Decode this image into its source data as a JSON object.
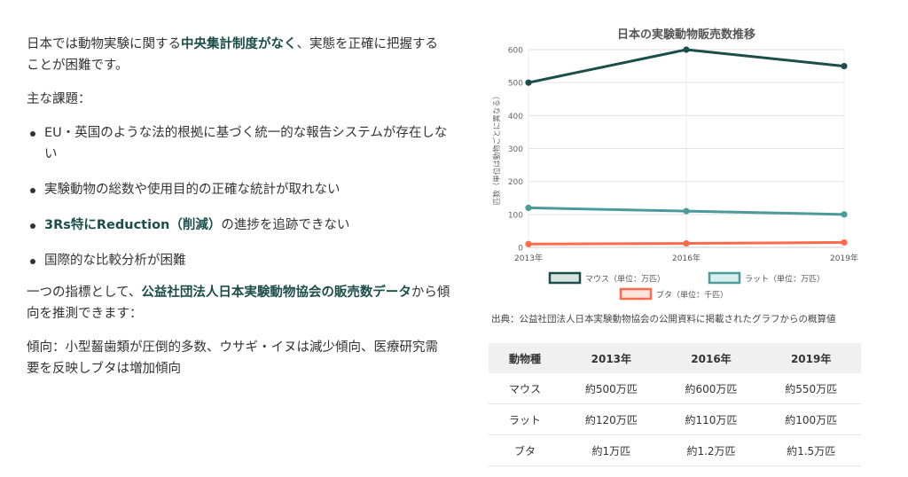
{
  "left": {
    "para1": {
      "pre": "日本では動物実験に関する",
      "highlight": "中央集計制度がなく",
      "post": "、実態を正確に把握することが困難です。"
    },
    "issues_heading": "主な課題：",
    "issues": [
      {
        "pre": "EU・英国のような法的根拠に基づく統一的な報告システムが存在しない",
        "highlight": "",
        "post": ""
      },
      {
        "pre": "実験動物の総数や使用目的の正確な統計が取れない",
        "highlight": "",
        "post": ""
      },
      {
        "pre": "",
        "highlight": "3Rs特にReduction（削減）",
        "post": "の進捗を追跡できない"
      },
      {
        "pre": "国際的な比較分析が困難",
        "highlight": "",
        "post": ""
      }
    ],
    "para3": {
      "pre": "一つの指標として、",
      "highlight": "公益社団法人日本実験動物協会の販売数データ",
      "post": "から傾向を推測できます："
    },
    "para4": "傾向：小型齧歯類が圧倒的多数、ウサギ・イヌは減少傾向、医療研究需要を反映しブタは増加傾向"
  },
  "chart_data": {
    "type": "line",
    "title": "日本の実験動物販売数推移",
    "ylabel": "匹数（単位は動物ごとに異なる）",
    "xlabel": "",
    "categories": [
      "2013年",
      "2016年",
      "2019年"
    ],
    "ylim": [
      0,
      600
    ],
    "yticks": [
      0,
      100,
      200,
      300,
      400,
      500,
      600
    ],
    "grid": true,
    "legend_position": "bottom",
    "series": [
      {
        "name": "マウス（単位：万匹）",
        "values": [
          500,
          600,
          550
        ],
        "color": "#1b4d4a",
        "fill": "#d9e3e2"
      },
      {
        "name": "ラット（単位：万匹）",
        "values": [
          120,
          110,
          100
        ],
        "color": "#4c9a9a",
        "fill": "#d7eeee"
      },
      {
        "name": "ブタ（単位：千匹）",
        "values": [
          10,
          12,
          15
        ],
        "color": "#ff6b4a",
        "fill": "#fde3dc"
      }
    ]
  },
  "source_note": "出典：公益社団法人日本実験動物協会の公開資料に掲載されたグラフからの概算値",
  "table": {
    "headers": [
      "動物種",
      "2013年",
      "2016年",
      "2019年"
    ],
    "rows": [
      [
        "マウス",
        "約500万匹",
        "約600万匹",
        "約550万匹"
      ],
      [
        "ラット",
        "約120万匹",
        "約110万匹",
        "約100万匹"
      ],
      [
        "ブタ",
        "約1万匹",
        "約1.2万匹",
        "約1.5万匹"
      ]
    ]
  }
}
